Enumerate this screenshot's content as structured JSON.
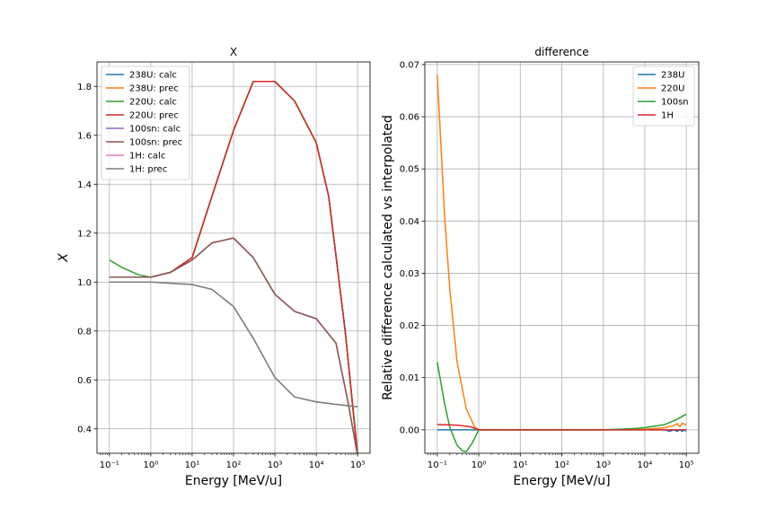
{
  "chart_data": [
    {
      "type": "line",
      "title": "X",
      "xlabel": "Energy [MeV/u]",
      "ylabel": "X",
      "xscale": "log",
      "xlim": [
        0.1,
        100000
      ],
      "ylim": [
        0.3,
        1.9
      ],
      "x_ticks": [
        0.1,
        1,
        10,
        100,
        1000,
        10000,
        100000
      ],
      "x_tick_labels": [
        "10⁻¹",
        "10⁰",
        "10¹",
        "10²",
        "10³",
        "10⁴",
        "10⁵"
      ],
      "y_ticks": [
        0.4,
        0.6,
        0.8,
        1.0,
        1.2,
        1.4,
        1.6,
        1.8
      ],
      "y_tick_labels": [
        "0.4",
        "0.6",
        "0.8",
        "1.0",
        "1.2",
        "1.4",
        "1.6",
        "1.8"
      ],
      "grid": true,
      "legend": "top-left",
      "series": [
        {
          "name": "238U: calc",
          "color": "#1f77b4",
          "x": [
            0.1,
            0.3,
            1,
            3,
            10,
            30,
            100,
            300,
            1000,
            3000,
            10000,
            20000,
            50000,
            100000
          ],
          "y": [
            1.02,
            1.02,
            1.02,
            1.04,
            1.1,
            1.35,
            1.62,
            1.82,
            1.82,
            1.74,
            1.57,
            1.35,
            0.8,
            0.29
          ]
        },
        {
          "name": "238U: prec",
          "color": "#ff7f0e",
          "x": [
            0.1,
            0.3,
            1,
            3,
            10,
            30,
            100,
            300,
            1000,
            3000,
            10000,
            20000,
            50000,
            100000
          ],
          "y": [
            1.02,
            1.02,
            1.02,
            1.04,
            1.1,
            1.35,
            1.62,
            1.82,
            1.82,
            1.74,
            1.57,
            1.35,
            0.8,
            0.29
          ]
        },
        {
          "name": "220U: calc",
          "color": "#2ca02c",
          "x": [
            0.1,
            0.2,
            0.5,
            1,
            3,
            10,
            30,
            100,
            300,
            1000,
            3000,
            10000,
            20000,
            50000,
            100000
          ],
          "y": [
            1.09,
            1.06,
            1.03,
            1.02,
            1.04,
            1.1,
            1.35,
            1.62,
            1.82,
            1.82,
            1.74,
            1.57,
            1.35,
            0.8,
            0.3
          ]
        },
        {
          "name": "220U: prec",
          "color": "#d62728",
          "x": [
            0.1,
            0.3,
            1,
            3,
            10,
            30,
            100,
            300,
            1000,
            3000,
            10000,
            20000,
            50000,
            100000
          ],
          "y": [
            1.02,
            1.02,
            1.02,
            1.04,
            1.1,
            1.35,
            1.62,
            1.82,
            1.82,
            1.74,
            1.57,
            1.35,
            0.8,
            0.29
          ]
        },
        {
          "name": "100sn: calc",
          "color": "#9467bd",
          "x": [
            0.1,
            1,
            3,
            10,
            30,
            100,
            300,
            1000,
            3000,
            10000,
            30000,
            60000,
            100000
          ],
          "y": [
            1.02,
            1.02,
            1.04,
            1.09,
            1.16,
            1.18,
            1.1,
            0.95,
            0.88,
            0.85,
            0.75,
            0.5,
            0.29
          ]
        },
        {
          "name": "100sn: prec",
          "color": "#8c564b",
          "x": [
            0.1,
            1,
            3,
            10,
            30,
            100,
            300,
            1000,
            3000,
            10000,
            30000,
            60000,
            100000
          ],
          "y": [
            1.02,
            1.02,
            1.04,
            1.09,
            1.16,
            1.18,
            1.1,
            0.95,
            0.88,
            0.85,
            0.75,
            0.5,
            0.29
          ]
        },
        {
          "name": "1H: calc",
          "color": "#e377c2",
          "x": [
            0.1,
            1,
            10,
            30,
            100,
            300,
            1000,
            3000,
            10000,
            30000,
            100000
          ],
          "y": [
            1.0,
            1.0,
            0.99,
            0.97,
            0.9,
            0.77,
            0.61,
            0.53,
            0.51,
            0.5,
            0.49
          ]
        },
        {
          "name": "1H: prec",
          "color": "#7f7f7f",
          "x": [
            0.1,
            1,
            10,
            30,
            100,
            300,
            1000,
            3000,
            10000,
            30000,
            100000
          ],
          "y": [
            1.0,
            1.0,
            0.99,
            0.97,
            0.9,
            0.77,
            0.61,
            0.53,
            0.51,
            0.5,
            0.49
          ]
        }
      ]
    },
    {
      "type": "line",
      "title": "difference",
      "xlabel": "Energy [MeV/u]",
      "ylabel": "Relative difference calculated vs interpolated",
      "xscale": "log",
      "xlim": [
        0.1,
        100000
      ],
      "ylim": [
        -0.0045,
        0.0705
      ],
      "x_ticks": [
        0.1,
        1,
        10,
        100,
        1000,
        10000,
        100000
      ],
      "x_tick_labels": [
        "10⁻¹",
        "10⁰",
        "10¹",
        "10²",
        "10³",
        "10⁴",
        "10⁵"
      ],
      "y_ticks": [
        0.0,
        0.01,
        0.02,
        0.03,
        0.04,
        0.05,
        0.06,
        0.07
      ],
      "y_tick_labels": [
        "0.00",
        "0.01",
        "0.02",
        "0.03",
        "0.04",
        "0.05",
        "0.06",
        "0.07"
      ],
      "grid": true,
      "legend": "top-right",
      "series": [
        {
          "name": "238U",
          "color": "#1f77b4",
          "x": [
            0.1,
            1,
            10,
            100,
            1000,
            10000,
            30000,
            40000,
            50000,
            60000,
            70000,
            80000,
            90000,
            100000
          ],
          "y": [
            0.0,
            0.0,
            0.0,
            0.0,
            0.0,
            0.0,
            0.0,
            -0.0003,
            0.0,
            -0.0003,
            0.0,
            -0.0003,
            0.0,
            -0.0003
          ]
        },
        {
          "name": "220U",
          "color": "#ff7f0e",
          "x": [
            0.1,
            0.15,
            0.2,
            0.3,
            0.5,
            0.8,
            1,
            10,
            100,
            1000,
            10000,
            30000,
            50000,
            60000,
            70000,
            80000,
            100000
          ],
          "y": [
            0.068,
            0.041,
            0.027,
            0.013,
            0.004,
            0.0005,
            0.0,
            0.0,
            0.0,
            0.0,
            0.0001,
            0.0004,
            0.0008,
            0.0012,
            0.0006,
            0.0013,
            0.0009
          ]
        },
        {
          "name": "100sn",
          "color": "#2ca02c",
          "x": [
            0.1,
            0.15,
            0.2,
            0.3,
            0.4,
            0.5,
            0.7,
            1,
            2,
            10,
            100,
            1000,
            5000,
            10000,
            30000,
            60000,
            100000
          ],
          "y": [
            0.013,
            0.005,
            0.0005,
            -0.003,
            -0.004,
            -0.0042,
            -0.0025,
            0.0,
            0.0,
            0.0,
            0.0,
            0.0,
            0.0002,
            0.0004,
            0.001,
            0.002,
            0.003
          ]
        },
        {
          "name": "1H",
          "color": "#d62728",
          "x": [
            0.1,
            0.3,
            0.6,
            1,
            10,
            100,
            1000,
            10000,
            100000
          ],
          "y": [
            0.001,
            0.0009,
            0.0006,
            0.0,
            0.0,
            0.0,
            0.0,
            0.0,
            0.0
          ]
        }
      ]
    }
  ]
}
